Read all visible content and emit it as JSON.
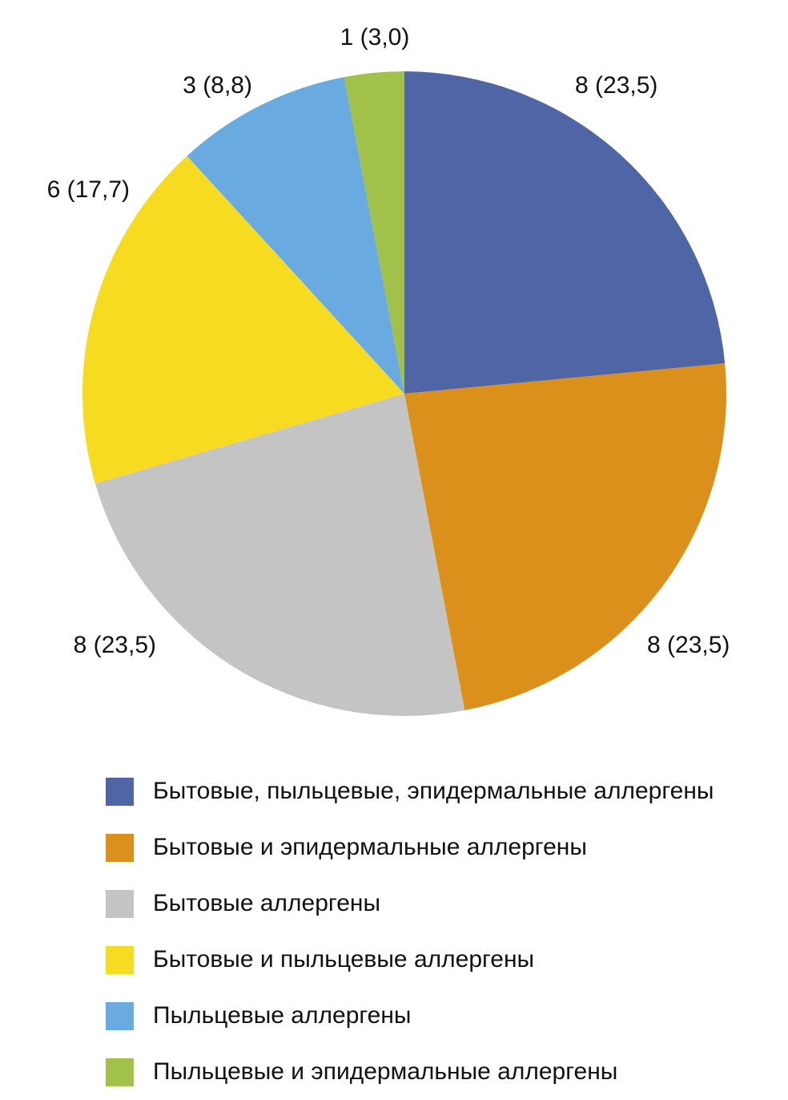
{
  "chart_data": {
    "type": "pie",
    "slices": [
      {
        "name": "Бытовые, пыльцевые, эпидермальные аллергены",
        "value": 8,
        "percent": 23.5,
        "label": "8 (23,5)",
        "color": "#5065a5"
      },
      {
        "name": "Бытовые и эпидермальные аллергены",
        "value": 8,
        "percent": 23.5,
        "label": "8 (23,5)",
        "color": "#db901b"
      },
      {
        "name": "Бытовые аллергены",
        "value": 8,
        "percent": 23.5,
        "label": "8 (23,5)",
        "color": "#c4c4c4"
      },
      {
        "name": "Бытовые и пыльцевые аллергены",
        "value": 6,
        "percent": 17.7,
        "label": "6 (17,7)",
        "color": "#f7db21"
      },
      {
        "name": "Пыльцевые аллергены",
        "value": 3,
        "percent": 8.8,
        "label": "3 (8,8)",
        "color": "#69abe0"
      },
      {
        "name": "Пыльцевые и эпидермальные аллергены",
        "value": 1,
        "percent": 3.0,
        "label": "1 (3,0)",
        "color": "#a1c14a"
      }
    ],
    "start": "12 o'clock",
    "direction": "clockwise",
    "legend_position": "bottom"
  }
}
